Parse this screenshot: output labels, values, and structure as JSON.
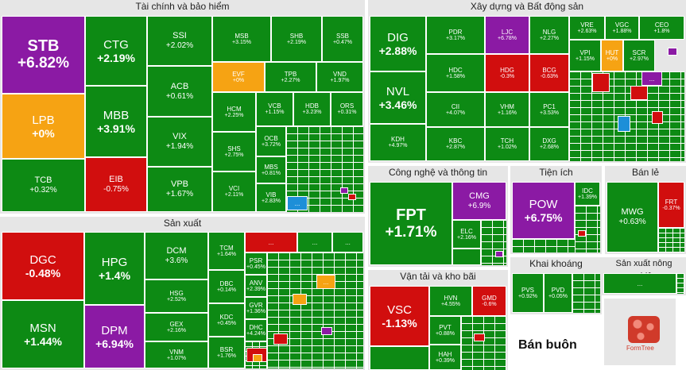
{
  "sections": {
    "finance": "Tài chính và bảo hiểm",
    "construction": "Xây dựng và Bất động sản",
    "manufacturing": "Sản xuất",
    "tech": "Công nghệ và thông tin",
    "utilities": "Tiện ích",
    "retail": "Bán lẻ",
    "transport": "Vận tải và kho bãi",
    "mining": "Khai khoáng",
    "agri": "Sản xuất nông nghiệp",
    "wholesale": "Bán buôn"
  },
  "ellipsis": "...",
  "logo_text": "FormTree",
  "finance": [
    {
      "t": "STB",
      "p": "+6.82%"
    },
    {
      "t": "LPB",
      "p": "+0%"
    },
    {
      "t": "TCB",
      "p": "+0.32%"
    },
    {
      "t": "CTG",
      "p": "+2.19%"
    },
    {
      "t": "MBB",
      "p": "+3.91%"
    },
    {
      "t": "EIB",
      "p": "-0.75%"
    },
    {
      "t": "SSI",
      "p": "+2.02%"
    },
    {
      "t": "ACB",
      "p": "+0.61%"
    },
    {
      "t": "VIX",
      "p": "+1.94%"
    },
    {
      "t": "VPB",
      "p": "+1.67%"
    },
    {
      "t": "MSB",
      "p": "+3.15%"
    },
    {
      "t": "SHB",
      "p": "+2.19%"
    },
    {
      "t": "SSB",
      "p": "+0.47%"
    },
    {
      "t": "EVF",
      "p": "+0%"
    },
    {
      "t": "TPB",
      "p": "+2.27%"
    },
    {
      "t": "VND",
      "p": "+1.97%"
    },
    {
      "t": "HCM",
      "p": "+2.25%"
    },
    {
      "t": "VCB",
      "p": "+1.15%"
    },
    {
      "t": "HDB",
      "p": "+3.23%"
    },
    {
      "t": "ORS",
      "p": "+0.31%"
    },
    {
      "t": "SHS",
      "p": "+2.75%"
    },
    {
      "t": "OCB",
      "p": "+3.72%"
    },
    {
      "t": "VCI",
      "p": "+2.11%"
    },
    {
      "t": "MBS",
      "p": "+0.81%"
    },
    {
      "t": "VIB",
      "p": "+2.83%"
    }
  ],
  "construction": [
    {
      "t": "DIG",
      "p": "+2.88%"
    },
    {
      "t": "NVL",
      "p": "+3.46%"
    },
    {
      "t": "KDH",
      "p": "+4.97%"
    },
    {
      "t": "PDR",
      "p": "+3.17%"
    },
    {
      "t": "HDC",
      "p": "+1.58%"
    },
    {
      "t": "CII",
      "p": "+4.07%"
    },
    {
      "t": "KBC",
      "p": "+2.87%"
    },
    {
      "t": "LJC",
      "p": "+6.78%"
    },
    {
      "t": "HDG",
      "p": "-0.3%"
    },
    {
      "t": "VHM",
      "p": "+1.16%"
    },
    {
      "t": "TCH",
      "p": "+1.02%"
    },
    {
      "t": "NLG",
      "p": "+2.27%"
    },
    {
      "t": "BCG",
      "p": "-0.63%"
    },
    {
      "t": "PC1",
      "p": "+3.53%"
    },
    {
      "t": "DXG",
      "p": "+2.68%"
    },
    {
      "t": "VRE",
      "p": "+2.63%"
    },
    {
      "t": "VGC",
      "p": "+1.88%"
    },
    {
      "t": "CEO",
      "p": "+1.8%"
    },
    {
      "t": "VPI",
      "p": "+1.15%"
    },
    {
      "t": "HUT",
      "p": "+0%"
    },
    {
      "t": "SCR",
      "p": "+2.97%"
    }
  ],
  "manufacturing": [
    {
      "t": "DGC",
      "p": "-0.48%"
    },
    {
      "t": "MSN",
      "p": "+1.44%"
    },
    {
      "t": "HPG",
      "p": "+1.4%"
    },
    {
      "t": "DPM",
      "p": "+6.94%"
    },
    {
      "t": "DCM",
      "p": "+3.6%"
    },
    {
      "t": "HSG",
      "p": "+2.52%"
    },
    {
      "t": "GEX",
      "p": "+2.16%"
    },
    {
      "t": "VNM",
      "p": "+1.07%"
    },
    {
      "t": "TCM",
      "p": "+1.64%"
    },
    {
      "t": "DBC",
      "p": "+0.14%"
    },
    {
      "t": "KDC",
      "p": "+0.45%"
    },
    {
      "t": "BSR",
      "p": "+1.76%"
    },
    {
      "t": "PSR",
      "p": "+0.45%"
    },
    {
      "t": "ANV",
      "p": "+2.39%"
    },
    {
      "t": "GVR",
      "p": "+1.36%"
    },
    {
      "t": "DHC",
      "p": "+4.24%"
    }
  ],
  "tech": [
    {
      "t": "FPT",
      "p": "+1.71%"
    },
    {
      "t": "CMG",
      "p": "+6.9%"
    },
    {
      "t": "ELC",
      "p": "+2.16%"
    }
  ],
  "utilities": [
    {
      "t": "POW",
      "p": "+6.75%"
    },
    {
      "t": "IDC",
      "p": "+1.39%"
    }
  ],
  "retail": [
    {
      "t": "MWG",
      "p": "+0.63%"
    },
    {
      "t": "FRT",
      "p": "-0.37%"
    }
  ],
  "transport": [
    {
      "t": "VSC",
      "p": "-1.13%"
    },
    {
      "t": "HVN",
      "p": "+4.55%"
    },
    {
      "t": "GMD",
      "p": "-0.6%"
    },
    {
      "t": "PVT",
      "p": "+0.88%"
    },
    {
      "t": "HAH",
      "p": "+0.39%"
    }
  ],
  "mining": [
    {
      "t": "PVS",
      "p": "+0.92%"
    },
    {
      "t": "PVD",
      "p": "+0.05%"
    }
  ]
}
